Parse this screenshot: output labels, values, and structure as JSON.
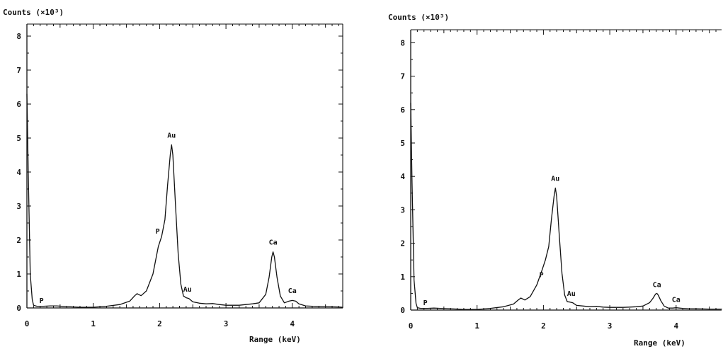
{
  "chart_data": [
    {
      "type": "line",
      "ylabel": "Counts (×10³)",
      "xlabel": "Range (keV)",
      "xlim": [
        0,
        4.8
      ],
      "ylim": [
        0,
        8.2
      ],
      "x_ticks": [
        0,
        1,
        2,
        3,
        4
      ],
      "y_ticks": [
        0,
        1,
        2,
        3,
        4,
        5,
        6,
        7,
        8
      ],
      "series": [
        {
          "x": [
            0.0,
            0.02,
            0.05,
            0.08,
            0.1,
            0.15,
            0.25,
            0.35,
            0.45,
            0.6,
            0.8,
            1.0,
            1.2,
            1.4,
            1.55,
            1.62,
            1.66,
            1.72,
            1.8,
            1.9,
            1.98,
            2.03,
            2.08,
            2.12,
            2.16,
            2.18,
            2.2,
            2.24,
            2.28,
            2.32,
            2.36,
            2.4,
            2.44,
            2.5,
            2.6,
            2.7,
            2.8,
            2.9,
            3.0,
            3.1,
            3.2,
            3.3,
            3.4,
            3.5,
            3.6,
            3.65,
            3.69,
            3.71,
            3.73,
            3.77,
            3.82,
            3.88,
            3.95,
            4.0,
            4.05,
            4.1,
            4.2,
            4.3,
            4.5,
            4.7,
            4.8
          ],
          "y": [
            6.3,
            4.0,
            1.0,
            0.25,
            0.08,
            0.05,
            0.05,
            0.06,
            0.06,
            0.04,
            0.02,
            0.02,
            0.05,
            0.1,
            0.2,
            0.35,
            0.42,
            0.36,
            0.5,
            1.0,
            1.8,
            2.1,
            2.6,
            3.6,
            4.5,
            4.8,
            4.5,
            3.0,
            1.6,
            0.7,
            0.35,
            0.3,
            0.28,
            0.18,
            0.14,
            0.12,
            0.13,
            0.1,
            0.08,
            0.08,
            0.08,
            0.1,
            0.12,
            0.15,
            0.4,
            0.9,
            1.5,
            1.65,
            1.5,
            0.9,
            0.35,
            0.15,
            0.2,
            0.22,
            0.2,
            0.12,
            0.06,
            0.05,
            0.04,
            0.03,
            0.02
          ]
        }
      ],
      "annotations": [
        {
          "text": "P",
          "x": 0.22,
          "y": 0.08
        },
        {
          "text": "P",
          "x": 1.97,
          "y": 2.12
        },
        {
          "text": "Au",
          "x": 2.18,
          "y": 4.95
        },
        {
          "text": "Au",
          "x": 2.42,
          "y": 0.42
        },
        {
          "text": "Ca",
          "x": 3.71,
          "y": 1.8
        },
        {
          "text": "Ca",
          "x": 4.0,
          "y": 0.38
        }
      ]
    },
    {
      "type": "line",
      "ylabel": "Counts (×10³)",
      "xlabel": "Range (keV)",
      "xlim": [
        0,
        4.8
      ],
      "ylim": [
        0,
        8.2
      ],
      "x_ticks": [
        0,
        1,
        2,
        3,
        4
      ],
      "y_ticks": [
        0,
        1,
        2,
        3,
        4,
        5,
        6,
        7,
        8
      ],
      "series": [
        {
          "x": [
            0.0,
            0.02,
            0.05,
            0.08,
            0.1,
            0.15,
            0.25,
            0.35,
            0.45,
            0.6,
            0.8,
            1.0,
            1.2,
            1.4,
            1.55,
            1.62,
            1.66,
            1.72,
            1.8,
            1.9,
            1.98,
            2.03,
            2.08,
            2.12,
            2.16,
            2.18,
            2.2,
            2.24,
            2.28,
            2.32,
            2.36,
            2.4,
            2.44,
            2.5,
            2.6,
            2.7,
            2.8,
            2.9,
            3.0,
            3.1,
            3.2,
            3.3,
            3.4,
            3.5,
            3.6,
            3.65,
            3.69,
            3.71,
            3.73,
            3.77,
            3.82,
            3.88,
            3.95,
            4.0,
            4.05,
            4.1,
            4.2,
            4.3,
            4.5,
            4.7,
            4.8
          ],
          "y": [
            6.2,
            3.8,
            0.9,
            0.2,
            0.07,
            0.05,
            0.05,
            0.06,
            0.05,
            0.04,
            0.02,
            0.02,
            0.05,
            0.1,
            0.18,
            0.3,
            0.36,
            0.3,
            0.4,
            0.75,
            1.2,
            1.5,
            1.9,
            2.7,
            3.4,
            3.65,
            3.4,
            2.2,
            1.1,
            0.45,
            0.25,
            0.24,
            0.22,
            0.14,
            0.12,
            0.1,
            0.11,
            0.09,
            0.08,
            0.08,
            0.08,
            0.09,
            0.1,
            0.12,
            0.22,
            0.35,
            0.48,
            0.5,
            0.45,
            0.28,
            0.12,
            0.06,
            0.06,
            0.07,
            0.06,
            0.05,
            0.04,
            0.04,
            0.03,
            0.03,
            0.02
          ]
        }
      ],
      "annotations": [
        {
          "text": "P",
          "x": 0.22,
          "y": 0.08
        },
        {
          "text": "P",
          "x": 1.97,
          "y": 0.92
        },
        {
          "text": "Au",
          "x": 2.18,
          "y": 3.8
        },
        {
          "text": "Au",
          "x": 2.42,
          "y": 0.36
        },
        {
          "text": "Ca",
          "x": 3.71,
          "y": 0.62
        },
        {
          "text": "Ca",
          "x": 4.0,
          "y": 0.18
        }
      ]
    }
  ]
}
